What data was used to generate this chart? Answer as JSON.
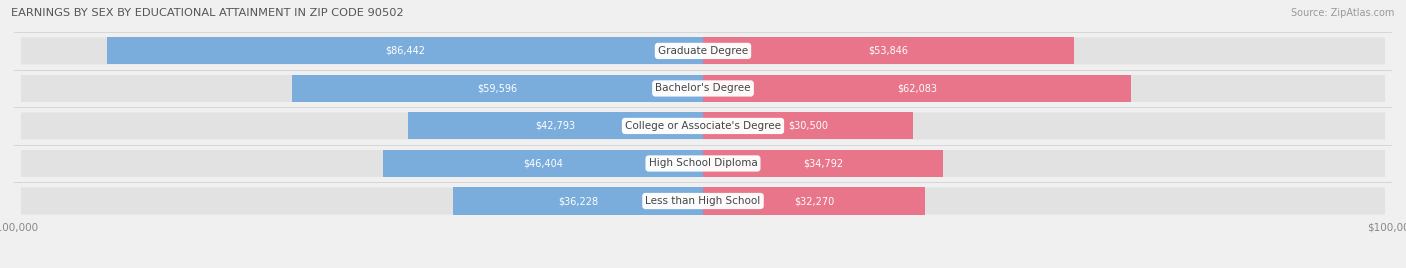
{
  "title": "EARNINGS BY SEX BY EDUCATIONAL ATTAINMENT IN ZIP CODE 90502",
  "source": "Source: ZipAtlas.com",
  "categories": [
    "Less than High School",
    "High School Diploma",
    "College or Associate's Degree",
    "Bachelor's Degree",
    "Graduate Degree"
  ],
  "male_values": [
    36228,
    46404,
    42793,
    59596,
    86442
  ],
  "female_values": [
    32270,
    34792,
    30500,
    62083,
    53846
  ],
  "max_value": 100000,
  "male_color": "#7aaddc",
  "female_color": "#e8758a",
  "bg_color": "#f0f0f0",
  "bar_bg_color": "#e2e2e2",
  "bar_height": 0.72,
  "value_in_bar_color": "#ffffff",
  "tick_label_color": "#888888",
  "category_text_color": "#444444"
}
